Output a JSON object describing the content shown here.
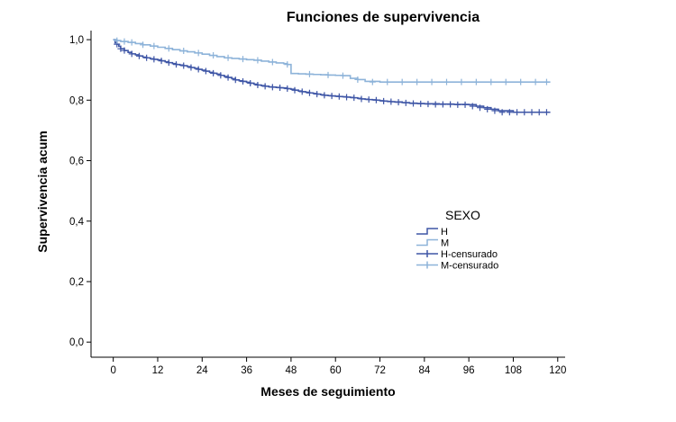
{
  "chart_data": {
    "type": "line",
    "title": "Funciones de supervivencia",
    "xlabel": "Meses de seguimiento",
    "ylabel": "Supervivencia acum",
    "xlim": [
      -6,
      122
    ],
    "ylim": [
      -0.05,
      1.03
    ],
    "x_ticks": [
      0,
      12,
      24,
      36,
      48,
      60,
      72,
      84,
      96,
      108,
      120
    ],
    "y_ticks": [
      0.0,
      0.2,
      0.4,
      0.6,
      0.8,
      1.0
    ],
    "y_tick_labels": [
      "0,0",
      "0,2",
      "0,4",
      "0,6",
      "0,8",
      "1,0"
    ],
    "grid": false,
    "legend_title": "SEXO",
    "legend_position": "right",
    "legend": [
      {
        "label": "H",
        "kind": "line",
        "color": "#3f56a6"
      },
      {
        "label": "M",
        "kind": "line",
        "color": "#8db3d9"
      },
      {
        "label": "H-censurado",
        "kind": "censor",
        "color": "#3f56a6"
      },
      {
        "label": "M-censurado",
        "kind": "censor",
        "color": "#8db3d9"
      }
    ],
    "series": [
      {
        "name": "H",
        "color": "#3f56a6",
        "x": [
          0,
          0.5,
          1,
          1.5,
          2,
          3,
          4,
          5,
          6,
          7,
          8,
          9,
          10,
          11,
          12,
          13,
          14,
          15,
          16,
          17,
          18,
          19,
          20,
          21,
          22,
          23,
          24,
          25,
          26,
          27,
          28,
          29,
          30,
          31,
          32,
          33,
          34,
          35,
          36,
          37,
          38,
          39,
          40,
          41,
          42,
          43,
          44,
          45,
          46,
          47,
          48,
          49,
          50,
          51,
          52,
          53,
          54,
          55,
          56,
          57,
          58,
          59,
          60,
          61,
          62,
          63,
          64,
          65,
          66,
          67,
          68,
          69,
          70,
          71,
          72,
          73,
          74,
          75,
          76,
          78,
          80,
          82,
          84,
          88,
          92,
          96,
          98,
          100,
          102,
          104,
          108,
          118
        ],
        "y": [
          1.0,
          0.99,
          0.985,
          0.978,
          0.97,
          0.964,
          0.958,
          0.953,
          0.95,
          0.946,
          0.942,
          0.94,
          0.937,
          0.935,
          0.933,
          0.93,
          0.927,
          0.924,
          0.921,
          0.918,
          0.916,
          0.914,
          0.911,
          0.908,
          0.905,
          0.902,
          0.899,
          0.896,
          0.892,
          0.889,
          0.886,
          0.882,
          0.878,
          0.875,
          0.871,
          0.867,
          0.864,
          0.862,
          0.859,
          0.856,
          0.853,
          0.85,
          0.848,
          0.846,
          0.844,
          0.843,
          0.842,
          0.841,
          0.84,
          0.838,
          0.836,
          0.833,
          0.83,
          0.828,
          0.826,
          0.824,
          0.822,
          0.82,
          0.818,
          0.816,
          0.815,
          0.814,
          0.813,
          0.812,
          0.811,
          0.81,
          0.809,
          0.808,
          0.806,
          0.804,
          0.803,
          0.802,
          0.801,
          0.8,
          0.798,
          0.797,
          0.796,
          0.795,
          0.794,
          0.792,
          0.79,
          0.789,
          0.788,
          0.787,
          0.786,
          0.785,
          0.78,
          0.775,
          0.77,
          0.765,
          0.76,
          0.76
        ]
      },
      {
        "name": "M",
        "color": "#8db3d9",
        "x": [
          0,
          1,
          2,
          4,
          6,
          8,
          10,
          12,
          14,
          16,
          18,
          20,
          22,
          24,
          26,
          28,
          30,
          32,
          34,
          36,
          38,
          40,
          42,
          44,
          46,
          47,
          48,
          50,
          52,
          54,
          56,
          58,
          60,
          62,
          64,
          66,
          68,
          72,
          80,
          90,
          100,
          110,
          118
        ],
        "y": [
          1.0,
          0.997,
          0.994,
          0.991,
          0.987,
          0.983,
          0.979,
          0.975,
          0.971,
          0.967,
          0.963,
          0.96,
          0.956,
          0.952,
          0.948,
          0.944,
          0.94,
          0.938,
          0.936,
          0.934,
          0.932,
          0.929,
          0.926,
          0.923,
          0.921,
          0.918,
          0.888,
          0.887,
          0.886,
          0.885,
          0.884,
          0.883,
          0.882,
          0.881,
          0.872,
          0.868,
          0.862,
          0.86,
          0.86,
          0.86,
          0.86,
          0.86,
          0.86
        ]
      }
    ],
    "censored": [
      {
        "name": "H-censurado",
        "color": "#3f56a6",
        "x": [
          1,
          2,
          3,
          5,
          7,
          9,
          11,
          13,
          15,
          17,
          19,
          21,
          23,
          25,
          27,
          29,
          31,
          33,
          35,
          37,
          39,
          41,
          43,
          45,
          47,
          49,
          51,
          53,
          55,
          57,
          59,
          61,
          63,
          65,
          67,
          69,
          71,
          73,
          75,
          77,
          79,
          81,
          83,
          85,
          87,
          89,
          91,
          93,
          95,
          97,
          99,
          101,
          103,
          105,
          107,
          109,
          111,
          113,
          115,
          117
        ],
        "y": [
          0.985,
          0.97,
          0.964,
          0.953,
          0.946,
          0.94,
          0.935,
          0.93,
          0.924,
          0.918,
          0.914,
          0.908,
          0.902,
          0.896,
          0.889,
          0.882,
          0.875,
          0.867,
          0.862,
          0.856,
          0.85,
          0.846,
          0.843,
          0.841,
          0.838,
          0.833,
          0.828,
          0.824,
          0.82,
          0.816,
          0.814,
          0.812,
          0.81,
          0.808,
          0.804,
          0.802,
          0.8,
          0.797,
          0.795,
          0.793,
          0.791,
          0.789,
          0.788,
          0.787,
          0.786,
          0.786,
          0.786,
          0.785,
          0.785,
          0.78,
          0.775,
          0.77,
          0.765,
          0.76,
          0.76,
          0.76,
          0.76,
          0.76,
          0.76,
          0.76
        ]
      },
      {
        "name": "M-censurado",
        "color": "#8db3d9",
        "x": [
          1,
          3,
          5,
          8,
          11,
          15,
          19,
          23,
          27,
          31,
          35,
          39,
          43,
          47,
          53,
          58,
          62,
          66,
          70,
          74,
          78,
          82,
          86,
          90,
          94,
          98,
          102,
          106,
          110,
          114,
          117
        ],
        "y": [
          0.997,
          0.994,
          0.991,
          0.983,
          0.979,
          0.971,
          0.963,
          0.956,
          0.948,
          0.94,
          0.936,
          0.932,
          0.926,
          0.918,
          0.886,
          0.883,
          0.881,
          0.868,
          0.86,
          0.86,
          0.86,
          0.86,
          0.86,
          0.86,
          0.86,
          0.86,
          0.86,
          0.86,
          0.86,
          0.86,
          0.86
        ]
      }
    ]
  }
}
